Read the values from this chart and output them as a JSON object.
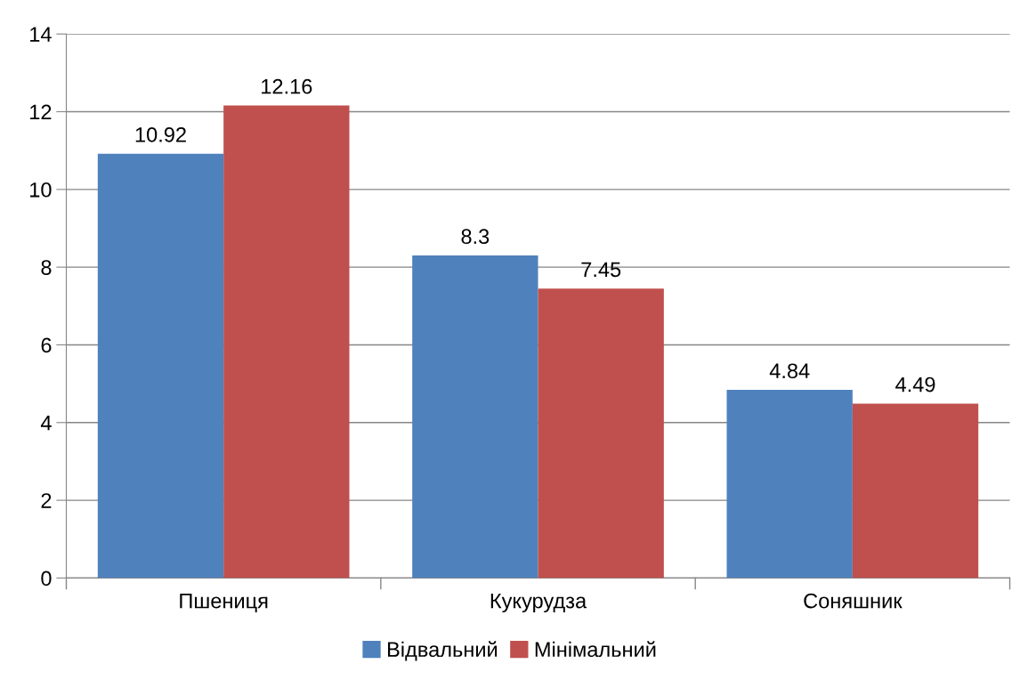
{
  "chart_data": {
    "type": "bar",
    "categories": [
      "Пшениця",
      "Кукурудза",
      "Соняшник"
    ],
    "series": [
      {
        "name": "Відвальний",
        "color": "#4f81bd",
        "values": [
          10.92,
          8.3,
          4.84
        ]
      },
      {
        "name": "Мінімальний",
        "color": "#c0504d",
        "values": [
          12.16,
          7.45,
          4.49
        ]
      }
    ],
    "ylim": [
      0,
      14
    ],
    "yticks": [
      0,
      2,
      4,
      6,
      8,
      10,
      12,
      14
    ],
    "grid": "y",
    "legend": "bottom",
    "data_labels": true
  }
}
